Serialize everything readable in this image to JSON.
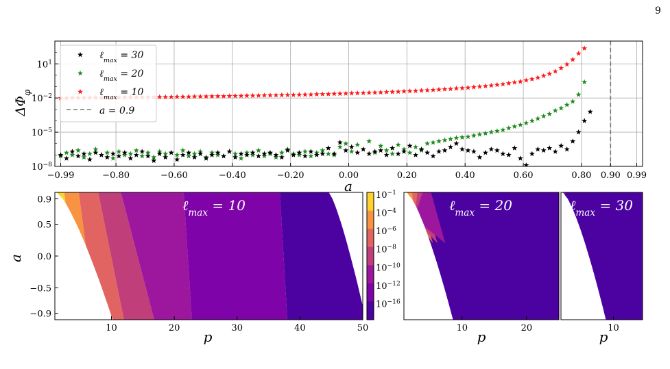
{
  "page": {
    "number": "9"
  },
  "colors": {
    "black": "#000000",
    "green": "#1f8a1f",
    "red": "#ff1a1a",
    "grid": "#b0b0b0",
    "cb": [
      "#fcd32f",
      "#f89441",
      "#e16462",
      "#c03f7a",
      "#9c179e",
      "#7e03a8",
      "#4c02a1"
    ]
  },
  "chart_data": [
    {
      "type": "scatter",
      "ylabel": "ΔΦ_φ",
      "xlabel": "a",
      "yscale": "log",
      "ylim_exp": [
        -8,
        3
      ],
      "xlim": [
        -1.01,
        1.01
      ],
      "x_ticks": [
        "−0.99",
        "−0.80",
        "−0.60",
        "−0.40",
        "−0.20",
        "0.00",
        "0.20",
        "0.40",
        "0.60",
        "0.80",
        "0.90",
        "0.99"
      ],
      "x_tick_values": [
        -0.99,
        -0.8,
        -0.6,
        -0.4,
        -0.2,
        0.0,
        0.2,
        0.4,
        0.6,
        0.8,
        0.9,
        0.99
      ],
      "y_ticks": [
        "10^-8",
        "10^-5",
        "10^-2",
        "10^1"
      ],
      "y_tick_exps": [
        -8,
        -5,
        -2,
        1
      ],
      "grid": true,
      "legend_position": "top-left",
      "legend": [
        {
          "label": "ℓmax = 30",
          "marker": "star",
          "color": "#000000"
        },
        {
          "label": "ℓmax = 20",
          "marker": "star",
          "color": "#1f8a1f"
        },
        {
          "label": "ℓmax = 10",
          "marker": "star",
          "color": "#ff1a1a"
        },
        {
          "label": "a = 0.9",
          "marker": "dashed-line",
          "color": "#777777"
        }
      ],
      "vline": {
        "x": 0.9,
        "label": "a = 0.9"
      },
      "series": [
        {
          "name": "ℓmax = 10",
          "color": "#ff1a1a",
          "x_start": -0.99,
          "x_step": 0.02,
          "log10_y": [
            -2.0,
            -2.0,
            -1.99,
            -1.99,
            -1.98,
            -1.98,
            -1.97,
            -1.97,
            -1.96,
            -1.96,
            -1.95,
            -1.95,
            -1.94,
            -1.94,
            -1.93,
            -1.93,
            -1.92,
            -1.91,
            -1.91,
            -1.9,
            -1.89,
            -1.89,
            -1.88,
            -1.87,
            -1.87,
            -1.86,
            -1.85,
            -1.84,
            -1.84,
            -1.83,
            -1.82,
            -1.81,
            -1.8,
            -1.79,
            -1.78,
            -1.77,
            -1.76,
            -1.75,
            -1.74,
            -1.73,
            -1.72,
            -1.71,
            -1.7,
            -1.69,
            -1.67,
            -1.66,
            -1.65,
            -1.63,
            -1.62,
            -1.6,
            -1.59,
            -1.57,
            -1.55,
            -1.54,
            -1.52,
            -1.5,
            -1.48,
            -1.46,
            -1.44,
            -1.42,
            -1.39,
            -1.37,
            -1.34,
            -1.32,
            -1.29,
            -1.26,
            -1.23,
            -1.2,
            -1.16,
            -1.13,
            -1.09,
            -1.05,
            -1.0,
            -0.95,
            -0.9,
            -0.84,
            -0.78,
            -0.71,
            -0.63,
            -0.55,
            -0.45,
            -0.34,
            -0.21,
            -0.06,
            0.12,
            0.34,
            0.63,
            0.96,
            1.38,
            1.91,
            2.36
          ]
        },
        {
          "name": "ℓmax = 20",
          "color": "#1f8a1f",
          "x_start": -0.99,
          "x_step": 0.02,
          "log10_y": [
            -7.1,
            -6.8,
            -7.0,
            -6.6,
            -7.2,
            -6.9,
            -6.5,
            -7.0,
            -6.8,
            -7.3,
            -6.7,
            -7.0,
            -6.9,
            -6.6,
            -7.1,
            -6.8,
            -7.2,
            -6.7,
            -6.9,
            -6.8,
            -7.0,
            -6.6,
            -7.1,
            -6.9,
            -6.7,
            -7.2,
            -6.8,
            -7.0,
            -7.1,
            -6.7,
            -6.9,
            -7.3,
            -6.8,
            -7.0,
            -6.6,
            -7.1,
            -6.9,
            -7.2,
            -6.8,
            -6.5,
            -6.9,
            -7.0,
            -6.7,
            -7.1,
            -6.8,
            -6.6,
            -6.9,
            -7.0,
            -6.3,
            -6.0,
            -6.7,
            -6.1,
            -6.5,
            -5.8,
            -6.8,
            -6.2,
            -6.6,
            -6.9,
            -6.1,
            -6.5,
            -6.8,
            -6.3,
            -6.6,
            -6.0,
            -5.9,
            -5.8,
            -5.7,
            -5.6,
            -5.5,
            -5.45,
            -5.4,
            -5.3,
            -5.2,
            -5.1,
            -5.0,
            -4.9,
            -4.8,
            -4.65,
            -4.5,
            -4.35,
            -4.2,
            -4.0,
            -3.8,
            -3.6,
            -3.4,
            -3.1,
            -2.9,
            -2.6,
            -2.3,
            -1.7,
            -0.6
          ]
        },
        {
          "name": "ℓmax = 30",
          "color": "#000000",
          "x_start": -0.99,
          "x_step": 0.02,
          "log10_y": [
            -7.0,
            -7.3,
            -6.7,
            -7.1,
            -6.9,
            -7.4,
            -6.8,
            -7.0,
            -7.2,
            -6.9,
            -7.1,
            -6.8,
            -7.3,
            -7.0,
            -6.7,
            -7.1,
            -7.5,
            -6.9,
            -7.2,
            -6.8,
            -7.4,
            -7.0,
            -6.8,
            -7.2,
            -6.9,
            -7.3,
            -7.0,
            -6.8,
            -7.1,
            -6.7,
            -7.2,
            -6.9,
            -7.0,
            -6.8,
            -7.1,
            -6.9,
            -6.8,
            -7.0,
            -7.2,
            -6.6,
            -7.0,
            -6.8,
            -7.1,
            -6.7,
            -7.0,
            -6.9,
            -6.4,
            -6.9,
            -5.9,
            -6.6,
            -6.3,
            -6.8,
            -6.5,
            -6.9,
            -6.7,
            -6.6,
            -7.0,
            -6.4,
            -6.9,
            -6.7,
            -6.2,
            -7.0,
            -6.5,
            -6.8,
            -7.1,
            -6.7,
            -6.6,
            -6.3,
            -6.0,
            -6.5,
            -6.6,
            -6.7,
            -7.2,
            -6.8,
            -6.5,
            -6.6,
            -6.9,
            -7.0,
            -6.4,
            -7.3,
            -7.9,
            -6.9,
            -6.5,
            -6.6,
            -6.4,
            -6.7,
            -6.2,
            -6.5,
            -5.8,
            -5.0,
            -4.0,
            -3.2
          ]
        }
      ]
    },
    {
      "type": "heatmap",
      "panel_label": "ℓmax = 10",
      "xlabel": "p",
      "ylabel": "a",
      "xlim": [
        1,
        50
      ],
      "ylim": [
        -1,
        1
      ],
      "x_ticks": [
        10,
        20,
        30,
        40,
        50
      ],
      "y_ticks": [
        "0.9",
        "0.5",
        "0.0",
        "−0.5",
        "−0.9"
      ],
      "y_tick_values": [
        0.9,
        0.5,
        0.0,
        -0.5,
        -0.9
      ],
      "boundary_p": {
        "at_a_plus_1": 1.3,
        "at_a_minus_1": 10.2
      },
      "band_edges": [
        {
          "top": 2.5,
          "bottom": 5.0
        },
        {
          "top": 4.8,
          "bottom": 7.5
        },
        {
          "top": 7.9,
          "bottom": 12.0
        },
        {
          "top": 11.5,
          "bottom": 16.8
        },
        {
          "top": 21.5,
          "bottom": 22.8
        },
        {
          "top": 36.8,
          "bottom": 38.0
        }
      ],
      "band_colors": [
        "#fcd32f",
        "#f89441",
        "#e16462",
        "#c03f7a",
        "#9c179e",
        "#7e03a8",
        "#4c02a1"
      ],
      "right_boundary": {
        "a_at_p45": 1.0,
        "p_at_a_minus_1": 50.5
      }
    },
    {
      "type": "heatmap",
      "panel_label": "ℓmax = 20",
      "xlabel": "p",
      "xlim": [
        1,
        25
      ],
      "x_ticks": [
        10,
        20
      ],
      "band_edges_top": [
        1.6,
        2.3,
        3.1,
        3.9,
        5.2
      ],
      "fill_color": "#4c02a1"
    },
    {
      "type": "heatmap",
      "panel_label": "ℓmax = 30",
      "xlabel": "p",
      "xlim": [
        1,
        15
      ],
      "x_ticks": [
        10
      ],
      "fill_color": "#4c02a1"
    },
    {
      "type": "colorbar",
      "labels": [
        "10^-1",
        "10^-4",
        "10^-6",
        "10^-8",
        "10^-10",
        "10^-12",
        "10^-16"
      ],
      "colors": [
        "#fcd32f",
        "#f89441",
        "#e16462",
        "#c03f7a",
        "#9c179e",
        "#7e03a8",
        "#4c02a1"
      ]
    }
  ]
}
